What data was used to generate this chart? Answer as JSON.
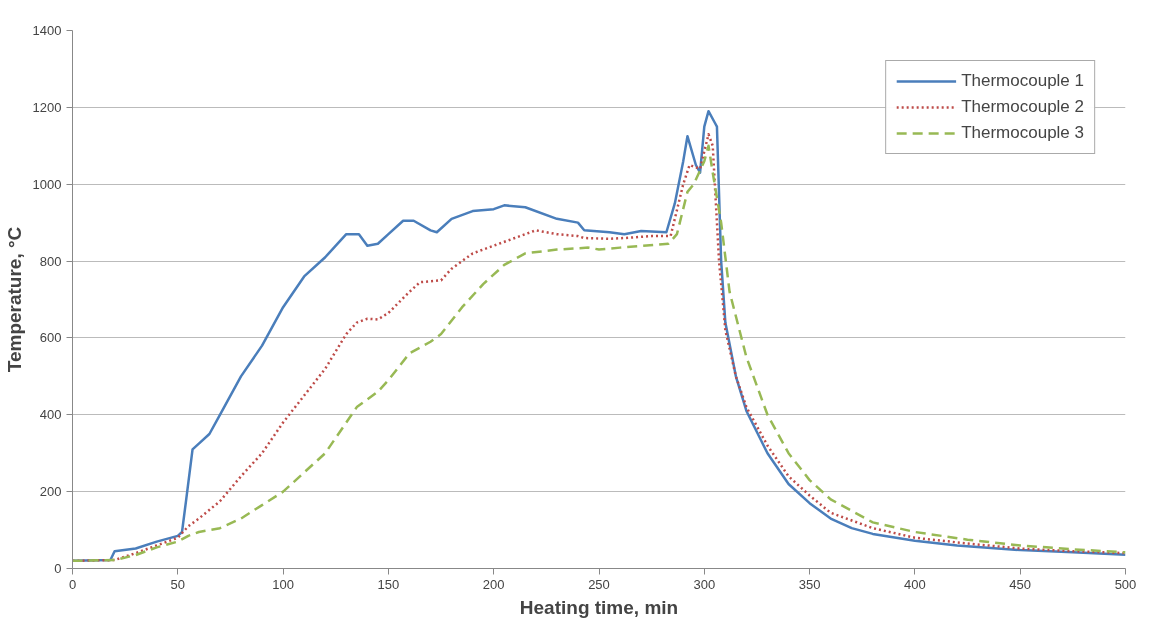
{
  "chart_data": {
    "type": "line",
    "xlabel": "Heating time, min",
    "ylabel": "Temperature, °C",
    "xlim": [
      0,
      500
    ],
    "xticks": [
      0,
      50,
      100,
      150,
      200,
      250,
      300,
      350,
      400,
      450,
      500
    ],
    "ylim": [
      0,
      1400
    ],
    "yticks": [
      0,
      200,
      400,
      600,
      800,
      1000,
      1200,
      1400
    ],
    "grid": "y",
    "legend": "top right",
    "marker": "none",
    "series": [
      {
        "name": "Thermocouple 1",
        "color": "#4a7ebb",
        "line_style": "solid",
        "x": [
          0,
          18,
          20,
          30,
          40,
          50,
          52,
          54,
          57,
          60,
          65,
          70,
          80,
          90,
          100,
          110,
          120,
          130,
          136,
          140,
          145,
          150,
          157,
          162,
          170,
          173,
          180,
          190,
          200,
          205,
          215,
          230,
          240,
          243,
          255,
          262,
          270,
          282,
          286,
          290,
          292,
          296,
          298,
          300,
          302,
          305,
          306,
          308,
          310,
          315,
          320,
          330,
          340,
          350,
          360,
          370,
          380,
          400,
          420,
          450,
          475,
          500
        ],
        "values": [
          20,
          22,
          45,
          52,
          70,
          85,
          95,
          180,
          310,
          325,
          350,
          400,
          500,
          580,
          680,
          760,
          810,
          870,
          870,
          840,
          845,
          870,
          905,
          905,
          880,
          875,
          910,
          930,
          935,
          945,
          940,
          910,
          900,
          880,
          875,
          870,
          878,
          875,
          950,
          1060,
          1125,
          1050,
          1030,
          1150,
          1190,
          1160,
          1150,
          800,
          640,
          500,
          410,
          300,
          220,
          170,
          130,
          105,
          90,
          72,
          60,
          48,
          42,
          36
        ]
      },
      {
        "name": "Thermocouple 2",
        "color": "#be4b48",
        "line_style": "dotted",
        "x": [
          0,
          20,
          30,
          40,
          50,
          55,
          60,
          70,
          80,
          90,
          100,
          110,
          120,
          130,
          135,
          140,
          145,
          150,
          160,
          165,
          175,
          180,
          190,
          200,
          210,
          220,
          230,
          240,
          243,
          255,
          262,
          275,
          284,
          290,
          293,
          298,
          302,
          304,
          307,
          310,
          315,
          320,
          330,
          340,
          350,
          360,
          380,
          400,
          425,
          450,
          475,
          500
        ],
        "values": [
          20,
          22,
          40,
          60,
          80,
          110,
          130,
          175,
          240,
          300,
          380,
          450,
          520,
          610,
          640,
          650,
          648,
          665,
          720,
          745,
          750,
          780,
          820,
          840,
          860,
          880,
          870,
          865,
          860,
          858,
          860,
          865,
          865,
          1000,
          1050,
          1040,
          1130,
          1100,
          800,
          620,
          500,
          420,
          320,
          240,
          190,
          145,
          105,
          80,
          65,
          52,
          45,
          40
        ]
      },
      {
        "name": "Thermocouple 3",
        "color": "#98b954",
        "line_style": "dashed",
        "x": [
          0,
          20,
          30,
          40,
          50,
          55,
          60,
          70,
          80,
          90,
          100,
          110,
          120,
          130,
          135,
          145,
          150,
          160,
          170,
          175,
          185,
          195,
          205,
          215,
          230,
          245,
          250,
          260,
          283,
          287,
          292,
          295,
          300,
          302,
          304,
          308,
          312,
          320,
          330,
          340,
          350,
          360,
          380,
          400,
          425,
          450,
          475,
          500
        ],
        "values": [
          20,
          22,
          35,
          55,
          70,
          85,
          95,
          105,
          130,
          165,
          200,
          250,
          300,
          380,
          420,
          460,
          490,
          560,
          590,
          610,
          680,
          740,
          790,
          820,
          830,
          835,
          830,
          835,
          845,
          870,
          980,
          1000,
          1060,
          1100,
          1030,
          900,
          720,
          550,
          400,
          300,
          230,
          180,
          120,
          95,
          75,
          60,
          50,
          42
        ]
      }
    ]
  }
}
